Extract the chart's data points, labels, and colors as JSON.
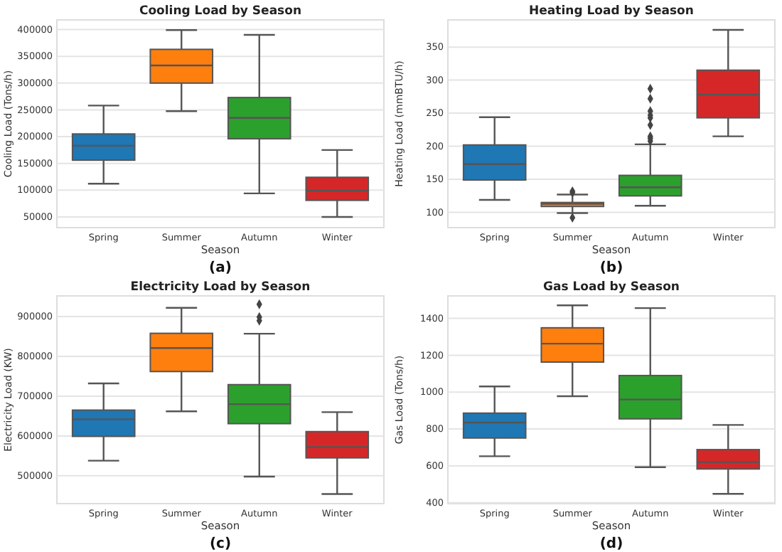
{
  "chart_data": [
    {
      "type": "box",
      "title": "Cooling Load by Season",
      "xlabel": "Season",
      "ylabel": "Cooling Load (Tons/h)",
      "annotations": [
        "(a)"
      ],
      "categories": [
        "Spring",
        "Summer",
        "Autumn",
        "Winter"
      ],
      "colors": [
        "#1f77b4",
        "#ff7f0e",
        "#2ca02c",
        "#d62728"
      ],
      "grid": "y",
      "ylim": [
        30000,
        418000
      ],
      "yticks": [
        50000,
        100000,
        150000,
        200000,
        250000,
        300000,
        350000,
        400000
      ],
      "boxes": [
        {
          "low": 112000,
          "q1": 156000,
          "median": 183000,
          "q3": 205000,
          "high": 258000
        },
        {
          "low": 247500,
          "q1": 300000,
          "median": 333000,
          "q3": 363000,
          "high": 399000
        },
        {
          "low": 94000,
          "q1": 196000,
          "median": 235000,
          "q3": 273000,
          "high": 390000
        },
        {
          "low": 50000,
          "q1": 81000,
          "median": 99000,
          "q3": 124000,
          "high": 175000
        }
      ]
    },
    {
      "type": "box",
      "title": "Heating Load by Season",
      "xlabel": "Season",
      "ylabel": "Heating Load (mmBTU/h)",
      "annotations": [
        "(b)"
      ],
      "categories": [
        "Spring",
        "Summer",
        "Autumn",
        "Winter"
      ],
      "colors": [
        "#1f77b4",
        "#ff7f0e",
        "#2ca02c",
        "#d62728"
      ],
      "grid": "y",
      "ylim": [
        77,
        391
      ],
      "yticks": [
        100,
        150,
        200,
        250,
        300,
        350
      ],
      "boxes": [
        {
          "low": 119,
          "q1": 149,
          "median": 173,
          "q3": 202,
          "high": 244
        },
        {
          "low": 99,
          "q1": 109,
          "median": 113,
          "q3": 115,
          "high": 127,
          "outliers": [
            130,
            132,
            92
          ]
        },
        {
          "low": 110,
          "q1": 125,
          "median": 138,
          "q3": 156,
          "high": 203,
          "outliers": [
            208,
            212,
            215,
            232,
            243,
            247,
            253,
            272,
            287
          ]
        },
        {
          "low": 215,
          "q1": 243,
          "median": 278,
          "q3": 315,
          "high": 376
        }
      ]
    },
    {
      "type": "box",
      "title": "Electricity Load by Season",
      "xlabel": "Season",
      "ylabel": "Electricity Load (KW)",
      "annotations": [
        "(c)"
      ],
      "categories": [
        "Spring",
        "Summer",
        "Autumn",
        "Winter"
      ],
      "colors": [
        "#1f77b4",
        "#ff7f0e",
        "#2ca02c",
        "#d62728"
      ],
      "grid": "y",
      "ylim": [
        430000,
        952000
      ],
      "yticks": [
        500000,
        600000,
        700000,
        800000,
        900000
      ],
      "boxes": [
        {
          "low": 538000,
          "q1": 599000,
          "median": 642000,
          "q3": 665000,
          "high": 732000
        },
        {
          "low": 662000,
          "q1": 762000,
          "median": 821000,
          "q3": 858000,
          "high": 922000
        },
        {
          "low": 498000,
          "q1": 631000,
          "median": 680000,
          "q3": 729000,
          "high": 857000,
          "outliers": [
            931000,
            899000,
            890000
          ]
        },
        {
          "low": 454000,
          "q1": 545000,
          "median": 572000,
          "q3": 611000,
          "high": 660000
        }
      ]
    },
    {
      "type": "box",
      "title": "Gas Load by Season",
      "xlabel": "Season",
      "ylabel": "Gas Load (Tons/h)",
      "annotations": [
        "(d)"
      ],
      "categories": [
        "Spring",
        "Summer",
        "Autumn",
        "Winter"
      ],
      "colors": [
        "#1f77b4",
        "#ff7f0e",
        "#2ca02c",
        "#d62728"
      ],
      "grid": "y",
      "ylim": [
        395,
        1522
      ],
      "yticks": [
        400,
        600,
        800,
        1000,
        1200,
        1400
      ],
      "boxes": [
        {
          "low": 652,
          "q1": 751,
          "median": 835,
          "q3": 886,
          "high": 1031
        },
        {
          "low": 978,
          "q1": 1163,
          "median": 1263,
          "q3": 1349,
          "high": 1471
        },
        {
          "low": 593,
          "q1": 855,
          "median": 960,
          "q3": 1090,
          "high": 1456
        },
        {
          "low": 448,
          "q1": 583,
          "median": 621,
          "q3": 688,
          "high": 822
        }
      ]
    }
  ]
}
